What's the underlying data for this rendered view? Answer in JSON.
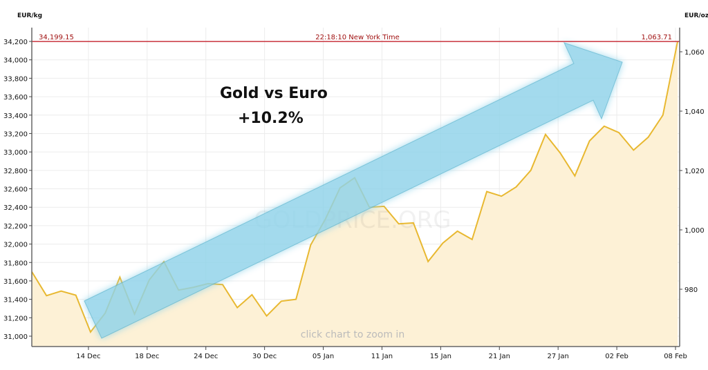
{
  "chart_data": {
    "type": "area",
    "title": "Gold vs Euro",
    "subtitle": "+10.2%",
    "left_axis_label": "EUR/kg",
    "right_axis_label": "EUR/oz",
    "current_value_left": "34,199.15",
    "current_value_right": "1,063.71",
    "time_label": "22:18:10 New York Time",
    "hint": "click chart to zoom in",
    "watermark": "GOLDPRICE.ORG",
    "ylim": [
      30900,
      34300
    ],
    "yticks_left": [
      31000,
      31200,
      31400,
      31600,
      31800,
      32000,
      32200,
      32400,
      32600,
      32800,
      33000,
      33200,
      33400,
      33600,
      33800,
      34000,
      34200
    ],
    "yticks_left_labels": [
      "31,000",
      "31,200",
      "31,400",
      "31,600",
      "31,800",
      "32,000",
      "32,200",
      "32,400",
      "32,600",
      "32,800",
      "33,000",
      "33,200",
      "33,400",
      "33,600",
      "33,800",
      "34,000",
      "34,200"
    ],
    "yticks_right_labels": [
      "980",
      "1,000",
      "1,020",
      "1,040",
      "1,060"
    ],
    "yticks_right": [
      980,
      1000,
      1020,
      1040,
      1060
    ],
    "xtick_labels": [
      "14 Dec",
      "18 Dec",
      "24 Dec",
      "30 Dec",
      "05 Jan",
      "11 Jan",
      "15 Jan",
      "21 Jan",
      "27 Jan",
      "02 Feb",
      "08 Feb"
    ],
    "xtick_indices": [
      4,
      8,
      12,
      16,
      20,
      24,
      28,
      32,
      36,
      40,
      44
    ],
    "values": [
      31700,
      31440,
      31490,
      31445,
      31045,
      31250,
      31640,
      31240,
      31610,
      31810,
      31500,
      31530,
      31570,
      31560,
      31310,
      31450,
      31220,
      31380,
      31400,
      31990,
      32270,
      32610,
      32720,
      32400,
      32410,
      32220,
      32230,
      31810,
      32010,
      32140,
      32050,
      32570,
      32520,
      32620,
      32800,
      33190,
      32990,
      32740,
      33120,
      33280,
      33210,
      33020,
      33160,
      33400,
      34199.15
    ],
    "colors": {
      "line": "#e8b830",
      "fill": "#fdf1d6",
      "current": "#c8323c",
      "arrow": "#8fd3ea"
    }
  }
}
